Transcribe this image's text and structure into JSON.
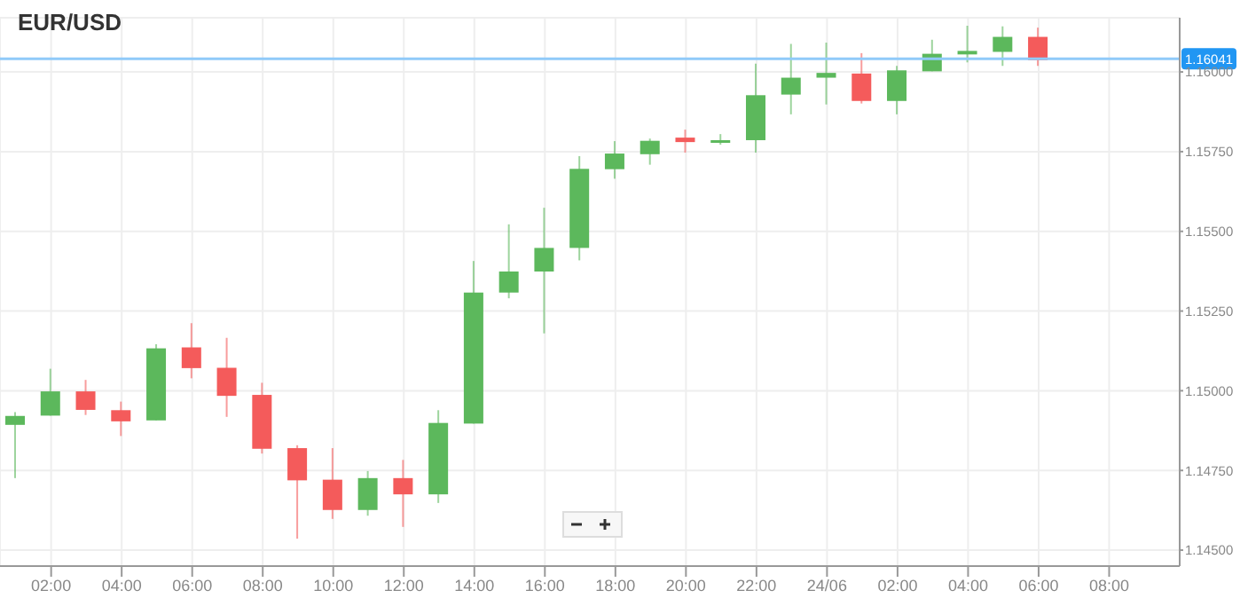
{
  "chart_data": {
    "type": "candlestick",
    "title": "EUR/USD",
    "x": [
      "--06-23T01:00",
      "--06-23T02:00",
      "--06-23T03:00",
      "--06-23T04:00",
      "--06-23T05:00",
      "--06-23T06:00",
      "--06-23T07:00",
      "--06-23T08:00",
      "--06-23T09:00",
      "--06-23T10:00",
      "--06-23T11:00",
      "--06-23T12:00",
      "--06-23T13:00",
      "--06-23T14:00",
      "--06-23T15:00",
      "--06-23T16:00",
      "--06-23T17:00",
      "--06-23T18:00",
      "--06-23T19:00",
      "--06-23T20:00",
      "--06-23T21:00",
      "--06-23T22:00",
      "--06-23T23:00",
      "--06-24T00:00",
      "--06-24T01:00",
      "--06-24T02:00",
      "--06-24T03:00",
      "--06-24T04:00",
      "--06-24T05:00",
      "--06-24T06:00"
    ],
    "ohlc": [
      [
        1.14893,
        1.14933,
        1.14726,
        1.14921
      ],
      [
        1.14922,
        1.15069,
        1.14922,
        1.14998
      ],
      [
        1.14998,
        1.15034,
        1.14924,
        1.1494
      ],
      [
        1.14939,
        1.14966,
        1.14858,
        1.14904
      ],
      [
        1.14907,
        1.15146,
        1.14907,
        1.15133
      ],
      [
        1.15136,
        1.15212,
        1.15039,
        1.15071
      ],
      [
        1.15072,
        1.15166,
        1.14918,
        1.14984
      ],
      [
        1.14987,
        1.15025,
        1.14803,
        1.14818
      ],
      [
        1.1482,
        1.14829,
        1.14536,
        1.14719
      ],
      [
        1.14721,
        1.1482,
        1.14598,
        1.14626
      ],
      [
        1.14626,
        1.14748,
        1.14608,
        1.14726
      ],
      [
        1.14726,
        1.14783,
        1.14573,
        1.14675
      ],
      [
        1.14675,
        1.14939,
        1.14648,
        1.14899
      ],
      [
        1.14897,
        1.15407,
        1.14897,
        1.15308
      ],
      [
        1.15308,
        1.15522,
        1.1529,
        1.15374
      ],
      [
        1.15374,
        1.15574,
        1.1518,
        1.15448
      ],
      [
        1.15448,
        1.15736,
        1.15409,
        1.15696
      ],
      [
        1.15695,
        1.15783,
        1.15665,
        1.15744
      ],
      [
        1.15742,
        1.15791,
        1.15709,
        1.15784
      ],
      [
        1.15794,
        1.15819,
        1.15747,
        1.1578
      ],
      [
        1.1578,
        1.15805,
        1.15772,
        1.15786
      ],
      [
        1.15786,
        1.16026,
        1.15747,
        1.15927
      ],
      [
        1.15929,
        1.16088,
        1.15867,
        1.15982
      ],
      [
        1.15982,
        1.16092,
        1.15898,
        1.15997
      ],
      [
        1.15995,
        1.16059,
        1.15901,
        1.15909
      ],
      [
        1.15909,
        1.16019,
        1.15867,
        1.16005
      ],
      [
        1.16002,
        1.16101,
        1.16002,
        1.16057
      ],
      [
        1.16055,
        1.16145,
        1.1603,
        1.16066
      ],
      [
        1.16063,
        1.16143,
        1.16019,
        1.1611
      ],
      [
        1.1611,
        1.16139,
        1.16019,
        1.16037
      ]
    ],
    "colors": [
      "#5cb85c",
      "#5cb85c",
      "#f45b5b",
      "#f45b5b",
      "#5cb85c",
      "#f45b5b",
      "#f45b5b",
      "#f45b5b",
      "#f45b5b",
      "#f45b5b",
      "#5cb85c",
      "#f45b5b",
      "#5cb85c",
      "#5cb85c",
      "#5cb85c",
      "#5cb85c",
      "#5cb85c",
      "#5cb85c",
      "#5cb85c",
      "#f45b5b",
      "#5cb85c",
      "#5cb85c",
      "#5cb85c",
      "#5cb85c",
      "#f45b5b",
      "#5cb85c",
      "#5cb85c",
      "#5cb85c",
      "#5cb85c",
      "#f45b5b"
    ],
    "xlim": [
      "--06-23T00:33",
      "--06-24T10:00"
    ],
    "xticks": [
      {
        "value": "--06-23T02:00",
        "label": "02:00"
      },
      {
        "value": "--06-23T04:00",
        "label": "04:00"
      },
      {
        "value": "--06-23T06:00",
        "label": "06:00"
      },
      {
        "value": "--06-23T08:00",
        "label": "08:00"
      },
      {
        "value": "--06-23T10:00",
        "label": "10:00"
      },
      {
        "value": "--06-23T12:00",
        "label": "12:00"
      },
      {
        "value": "--06-23T14:00",
        "label": "14:00"
      },
      {
        "value": "--06-23T16:00",
        "label": "16:00"
      },
      {
        "value": "--06-23T18:00",
        "label": "18:00"
      },
      {
        "value": "--06-23T20:00",
        "label": "20:00"
      },
      {
        "value": "--06-23T22:00",
        "label": "22:00"
      },
      {
        "value": "--06-24",
        "label": "24/06"
      },
      {
        "value": "--06-24T02:00",
        "label": "02:00"
      },
      {
        "value": "--06-24T04:00",
        "label": "04:00"
      },
      {
        "value": "--06-24T06:00",
        "label": "06:00"
      },
      {
        "value": "--06-24T08:00",
        "label": "08:00"
      }
    ],
    "ylim": [
      1.1445,
      1.1617
    ],
    "yticks": [
      {
        "value": 1.145,
        "label": "1.14500"
      },
      {
        "value": 1.1475,
        "label": "1.14750"
      },
      {
        "value": 1.15,
        "label": "1.15000"
      },
      {
        "value": 1.1525,
        "label": "1.15250"
      },
      {
        "value": 1.155,
        "label": "1.15500"
      },
      {
        "value": 1.1575,
        "label": "1.15750"
      },
      {
        "value": 1.16,
        "label": "1.16000"
      }
    ],
    "ref_lines": [
      {
        "axis": "y",
        "value": 1.16041,
        "label": "1.16041",
        "color": "#90caf9"
      }
    ],
    "grid": true
  }
}
